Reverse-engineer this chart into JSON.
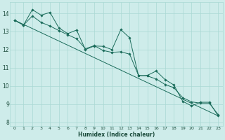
{
  "xlabel": "Humidex (Indice chaleur)",
  "background_color": "#ceecea",
  "grid_color": "#aad8d4",
  "line_color": "#1a6b5a",
  "xlim": [
    -0.5,
    23.5
  ],
  "ylim": [
    7.8,
    14.6
  ],
  "yticks": [
    8,
    9,
    10,
    11,
    12,
    13,
    14
  ],
  "xticks": [
    0,
    1,
    2,
    3,
    4,
    5,
    6,
    7,
    8,
    9,
    10,
    11,
    12,
    13,
    14,
    15,
    16,
    17,
    18,
    19,
    20,
    21,
    22,
    23
  ],
  "series1": [
    [
      0,
      13.62
    ],
    [
      1,
      13.35
    ],
    [
      2,
      14.2
    ],
    [
      3,
      13.9
    ],
    [
      4,
      14.05
    ],
    [
      5,
      13.2
    ],
    [
      6,
      12.88
    ],
    [
      7,
      13.08
    ],
    [
      8,
      12.0
    ],
    [
      9,
      12.2
    ],
    [
      10,
      12.18
    ],
    [
      11,
      12.0
    ],
    [
      12,
      13.1
    ],
    [
      13,
      12.65
    ],
    [
      14,
      10.55
    ],
    [
      15,
      10.58
    ],
    [
      16,
      10.82
    ],
    [
      17,
      10.35
    ],
    [
      18,
      10.05
    ],
    [
      19,
      9.15
    ],
    [
      20,
      8.9
    ],
    [
      21,
      9.1
    ],
    [
      22,
      9.1
    ],
    [
      23,
      8.35
    ]
  ],
  "series2": [
    [
      0,
      13.62
    ],
    [
      1,
      13.35
    ],
    [
      2,
      13.85
    ],
    [
      3,
      13.5
    ],
    [
      4,
      13.3
    ],
    [
      5,
      13.05
    ],
    [
      6,
      12.82
    ],
    [
      7,
      12.6
    ],
    [
      8,
      12.05
    ],
    [
      9,
      12.22
    ],
    [
      10,
      11.95
    ],
    [
      11,
      11.85
    ],
    [
      12,
      11.88
    ],
    [
      13,
      11.75
    ],
    [
      14,
      10.58
    ],
    [
      15,
      10.55
    ],
    [
      16,
      10.38
    ],
    [
      17,
      10.08
    ],
    [
      18,
      9.9
    ],
    [
      19,
      9.35
    ],
    [
      20,
      9.12
    ],
    [
      21,
      9.05
    ],
    [
      22,
      9.05
    ],
    [
      23,
      8.42
    ]
  ],
  "trend_x": [
    0,
    23
  ],
  "trend_y": [
    13.62,
    8.35
  ]
}
